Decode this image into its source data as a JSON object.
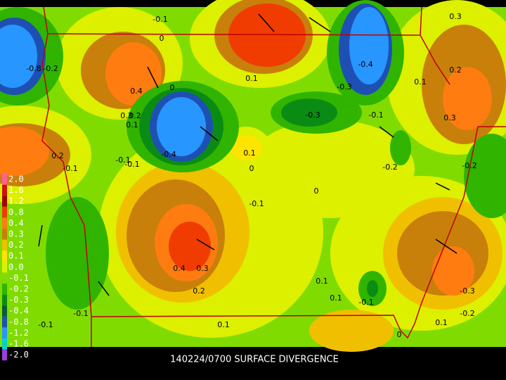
{
  "title": "140224/0700 SURFACE DIVERGENCE",
  "legend": [
    {
      "label": "2.0",
      "color": "#ff6090"
    },
    {
      "label": "1.6",
      "color": "#d01010"
    },
    {
      "label": "1.2",
      "color": "#a00000"
    },
    {
      "label": "0.8",
      "color": "#f03c00"
    },
    {
      "label": "0.4",
      "color": "#ff7c10"
    },
    {
      "label": "0.3",
      "color": "#c8800a"
    },
    {
      "label": "0.2",
      "color": "#f0c000"
    },
    {
      "label": "0.1",
      "color": "#ffe400"
    },
    {
      "label": "0.0",
      "color": "#dcf000"
    },
    {
      "label": "-0.1",
      "color": "#80dc00"
    },
    {
      "label": "-0.2",
      "color": "#30b400"
    },
    {
      "label": "-0.3",
      "color": "#0a8c14"
    },
    {
      "label": "-0.4",
      "color": "#0a5a3c"
    },
    {
      "label": "-0.8",
      "color": "#1e50b4"
    },
    {
      "label": "-1.2",
      "color": "#2896ff"
    },
    {
      "label": "-1.6",
      "color": "#00d2d2"
    },
    {
      "label": "-2.0",
      "color": "#a03cdc"
    }
  ],
  "contour_labels": [
    "-0.1",
    "0",
    "0.3",
    "-0.8",
    "-0.2",
    "0.4",
    "0.3",
    "0.2",
    "0.1",
    "0",
    "-0.4",
    "-0.3",
    "-0.3",
    "-0.1",
    "0.2",
    "0.3",
    "0.1",
    "-0.4",
    "-0.1",
    "0.1",
    "0",
    "-0.2",
    "0.1",
    "0.2",
    "-0.1",
    "0",
    "-0.1",
    "0.4",
    "0.3",
    "0.2",
    "-0.1",
    "0.1",
    "-0.1",
    "0.1",
    "-0.1",
    "-0.3",
    "-0.2",
    "0.1",
    "-0.2",
    "0",
    "-0.1",
    "0.1"
  ]
}
